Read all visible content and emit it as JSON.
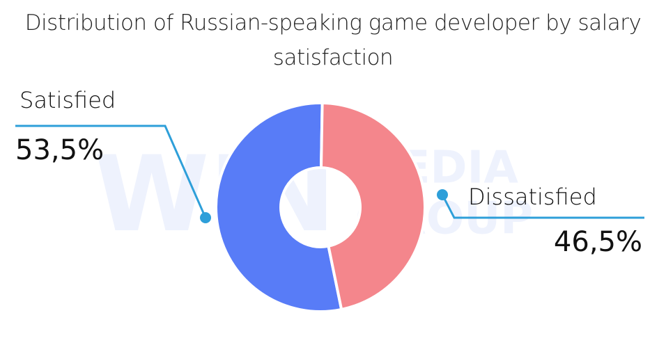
{
  "watermark": [
    "WIN",
    "MEDIA",
    "GROUP"
  ],
  "chart_data": {
    "type": "donut",
    "title": "Distribution of Russian-speaking game developer by salary satisfaction",
    "categories": [
      "Satisfied",
      "Dissatisfied"
    ],
    "values": [
      53.5,
      46.5
    ],
    "value_labels": [
      "53,5%",
      "46,5%"
    ],
    "colors": [
      "#587cf7",
      "#f4868c"
    ],
    "callout_color": "#2e9fd9"
  }
}
